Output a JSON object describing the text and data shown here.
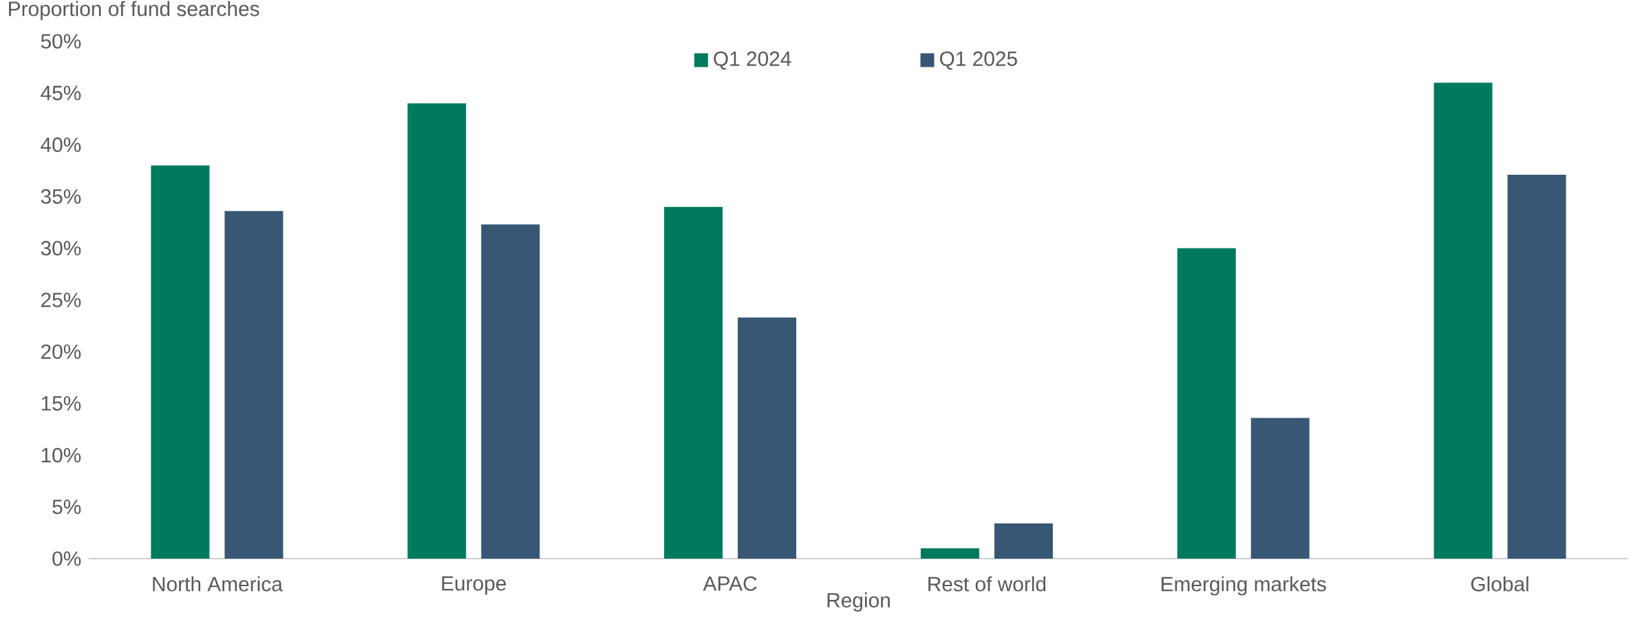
{
  "chart_data": {
    "type": "bar",
    "ylabel": "Proportion of fund searches",
    "xlabel": "Region",
    "categories": [
      "North America",
      "Europe",
      "APAC",
      "Rest of world",
      "Emerging markets",
      "Global"
    ],
    "series": [
      {
        "name": "Q1 2024",
        "color": "#007a5e",
        "values": [
          38,
          44,
          34,
          1,
          30,
          46
        ]
      },
      {
        "name": "Q1 2025",
        "color": "#375775",
        "values": [
          33.6,
          32.3,
          23.3,
          3.4,
          13.6,
          37.1
        ]
      }
    ],
    "ylim": [
      0,
      50
    ],
    "yticks": [
      {
        "value": 0,
        "label": "0%"
      },
      {
        "value": 5,
        "label": "5%"
      },
      {
        "value": 10,
        "label": "10%"
      },
      {
        "value": 15,
        "label": "15%"
      },
      {
        "value": 20,
        "label": "20%"
      },
      {
        "value": 25,
        "label": "25%"
      },
      {
        "value": 30,
        "label": "30%"
      },
      {
        "value": 35,
        "label": "35%"
      },
      {
        "value": 40,
        "label": "40%"
      },
      {
        "value": 45,
        "label": "45%"
      },
      {
        "value": 50,
        "label": "50%"
      }
    ],
    "grid": false,
    "legend": "top"
  }
}
